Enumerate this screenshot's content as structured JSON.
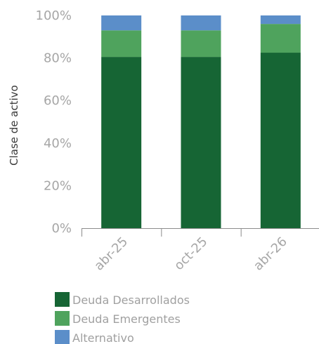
{
  "chart_data": {
    "type": "bar",
    "stacked": true,
    "ylabel": "Clase de activo",
    "xlabel": "",
    "ylim": [
      0,
      100
    ],
    "y_ticks": [
      "0%",
      "20%",
      "40%",
      "60%",
      "80%",
      "100%"
    ],
    "y_tick_values": [
      0,
      20,
      40,
      60,
      80,
      100
    ],
    "categories": [
      "abr-25",
      "oct-25",
      "abr-26"
    ],
    "series": [
      {
        "name": "Deuda Desarrollados",
        "color": "#166534",
        "values": [
          80.5,
          80.5,
          82.5
        ]
      },
      {
        "name": "Deuda Emergentes",
        "color": "#4fa35d",
        "values": [
          12.5,
          12.5,
          13.5
        ]
      },
      {
        "name": "Alternativo",
        "color": "#5b8ec9",
        "values": [
          7,
          7,
          4
        ]
      }
    ],
    "legend_position": "bottom-left",
    "grid": false
  }
}
